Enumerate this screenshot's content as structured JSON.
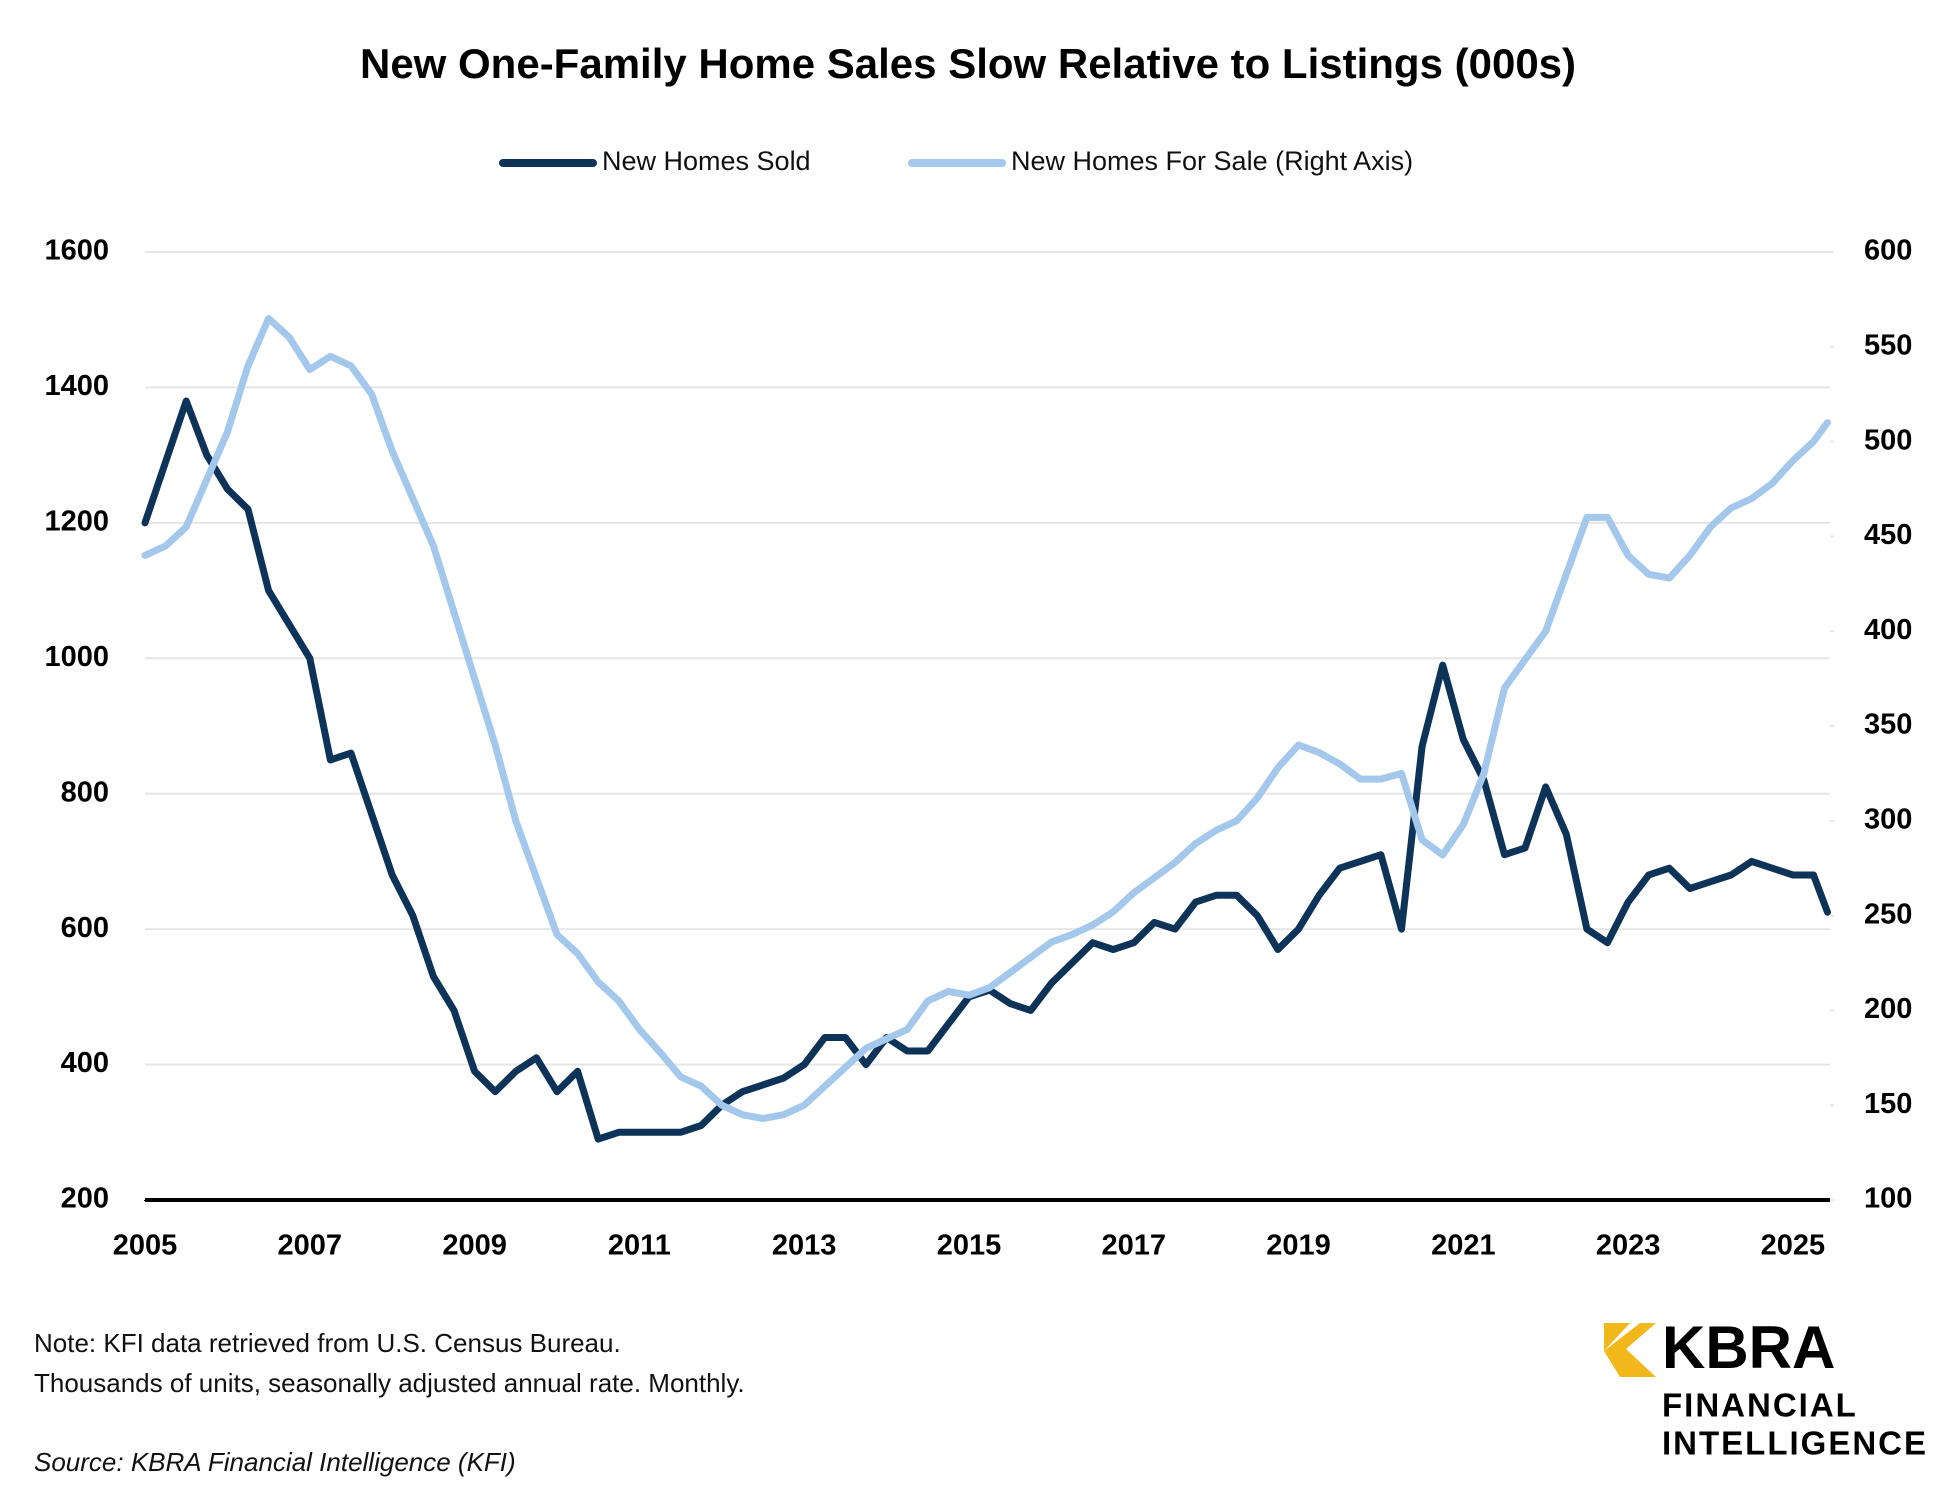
{
  "chart_data": {
    "type": "line",
    "title": "New One-Family Home Sales Slow Relative to Listings (000s)",
    "x": [
      2005,
      2005.25,
      2005.5,
      2005.75,
      2006,
      2006.25,
      2006.5,
      2006.75,
      2007,
      2007.25,
      2007.5,
      2007.75,
      2008,
      2008.25,
      2008.5,
      2008.75,
      2009,
      2009.25,
      2009.5,
      2009.75,
      2010,
      2010.25,
      2010.5,
      2010.75,
      2011,
      2011.25,
      2011.5,
      2011.75,
      2012,
      2012.25,
      2012.5,
      2012.75,
      2013,
      2013.25,
      2013.5,
      2013.75,
      2014,
      2014.25,
      2014.5,
      2014.75,
      2015,
      2015.25,
      2015.5,
      2015.75,
      2016,
      2016.25,
      2016.5,
      2016.75,
      2017,
      2017.25,
      2017.5,
      2017.75,
      2018,
      2018.25,
      2018.5,
      2018.75,
      2019,
      2019.25,
      2019.5,
      2019.75,
      2020,
      2020.25,
      2020.5,
      2020.75,
      2021,
      2021.25,
      2021.5,
      2021.75,
      2022,
      2022.25,
      2022.5,
      2022.75,
      2023,
      2023.25,
      2023.5,
      2023.75,
      2024,
      2024.25,
      2024.5,
      2024.75,
      2025,
      2025.25,
      2025.42
    ],
    "series": [
      {
        "name": "New Homes Sold",
        "color": "#0d3358",
        "axis": "y",
        "values": [
          1200,
          1290,
          1380,
          1300,
          1250,
          1220,
          1100,
          1050,
          1000,
          850,
          860,
          770,
          680,
          620,
          530,
          480,
          390,
          360,
          390,
          410,
          360,
          390,
          290,
          300,
          300,
          300,
          300,
          310,
          340,
          360,
          370,
          380,
          400,
          440,
          440,
          400,
          440,
          420,
          420,
          460,
          500,
          510,
          490,
          480,
          520,
          550,
          580,
          570,
          580,
          610,
          600,
          640,
          650,
          650,
          620,
          570,
          600,
          650,
          690,
          700,
          710,
          600,
          870,
          990,
          880,
          820,
          710,
          720,
          810,
          740,
          600,
          580,
          640,
          680,
          690,
          660,
          670,
          680,
          700,
          690,
          680,
          680,
          625
        ]
      },
      {
        "name": "New Homes For Sale (Right Axis)",
        "color": "#a3c8ec",
        "axis": "y2",
        "values": [
          440,
          445,
          455,
          480,
          505,
          540,
          565,
          555,
          538,
          545,
          540,
          525,
          495,
          470,
          445,
          410,
          375,
          340,
          300,
          270,
          240,
          230,
          215,
          205,
          190,
          178,
          165,
          160,
          150,
          145,
          143,
          145,
          150,
          160,
          170,
          180,
          185,
          190,
          205,
          210,
          208,
          212,
          220,
          228,
          236,
          240,
          245,
          252,
          262,
          270,
          278,
          288,
          295,
          300,
          312,
          328,
          340,
          336,
          330,
          322,
          322,
          325,
          290,
          282,
          298,
          325,
          370,
          385,
          400,
          430,
          460,
          460,
          440,
          430,
          428,
          440,
          455,
          465,
          470,
          478,
          490,
          500,
          510
        ]
      }
    ],
    "xlim": [
      2005,
      2025.45
    ],
    "xticks": [
      2005,
      2007,
      2009,
      2011,
      2013,
      2015,
      2017,
      2019,
      2021,
      2023,
      2025
    ],
    "ylim": [
      200,
      1600
    ],
    "yticks": [
      200,
      400,
      600,
      800,
      1000,
      1200,
      1400,
      1600
    ],
    "y2lim": [
      100,
      600
    ],
    "y2ticks": [
      100,
      150,
      200,
      250,
      300,
      350,
      400,
      450,
      500,
      550,
      600
    ],
    "grid": true,
    "legend": "top",
    "notes": [
      "Note: KFI data retrieved from U.S. Census Bureau.",
      "Thousands of units, seasonally adjusted annual rate. Monthly."
    ],
    "source": "Source: KBRA Financial Intelligence (KFI)",
    "logo": {
      "name": "KBRA",
      "lines": [
        "FINANCIAL",
        "INTELLIGENCE"
      ]
    }
  }
}
